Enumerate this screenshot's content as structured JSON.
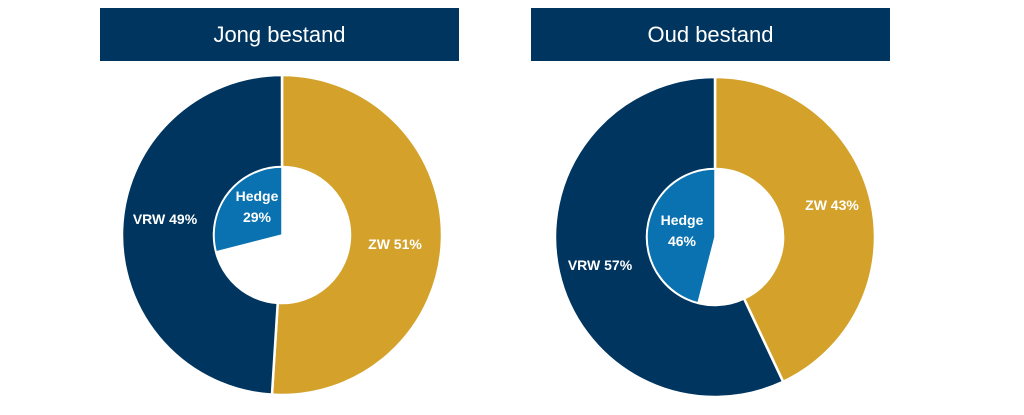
{
  "chart_data": [
    {
      "type": "pie",
      "title": "Jong bestand",
      "outer_ring": [
        {
          "label": "ZW 51%",
          "value": 51,
          "color": "#d4a22b"
        },
        {
          "label": "VRW 49%",
          "value": 49,
          "color": "#00355f"
        }
      ],
      "inner_ring": [
        {
          "label_line1": "Hedge",
          "label_line2": "29%",
          "value": 29,
          "color": "#0a72b0"
        }
      ]
    },
    {
      "type": "pie",
      "title": "Oud bestand",
      "outer_ring": [
        {
          "label": "ZW 43%",
          "value": 43,
          "color": "#d4a22b"
        },
        {
          "label": "VRW 57%",
          "value": 57,
          "color": "#00355f"
        }
      ],
      "inner_ring": [
        {
          "label_line1": "Hedge",
          "label_line2": "46%",
          "value": 46,
          "color": "#0a72b0"
        }
      ]
    }
  ]
}
